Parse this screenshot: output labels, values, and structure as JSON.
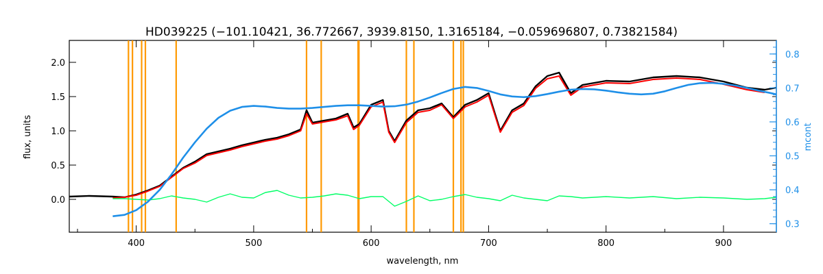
{
  "chart_data": {
    "type": "line",
    "title": "HD039225    (−101.10421, 36.772667, 3939.8150, 1.3165184, −0.059696807, 0.73821584)",
    "xlabel": "wavelength, nm",
    "ylabel": "flux, units",
    "y2label": "mcont",
    "xlim": [
      343,
      945
    ],
    "ylim": [
      -0.48,
      2.32
    ],
    "y2lim": [
      0.275,
      0.84
    ],
    "x_ticks": [
      400,
      500,
      600,
      700,
      800,
      900
    ],
    "y_ticks": [
      0.0,
      0.5,
      1.0,
      1.5,
      2.0
    ],
    "y_tick_labels": [
      "0.0",
      "0.5",
      "1.0",
      "1.5",
      "2.0"
    ],
    "y2_ticks": [
      0.3,
      0.4,
      0.5,
      0.6,
      0.7,
      0.8
    ],
    "y2_tick_labels": [
      "0.3",
      "0.4",
      "0.5",
      "0.6",
      "0.7",
      "0.8"
    ],
    "colors": {
      "observed": "#000000",
      "model": "#ff0000",
      "residual": "#00ff66",
      "continuum": "#1e8fe8",
      "lines": "#ff9900",
      "axis": "#000000",
      "right_axis": "#1e8fe8"
    },
    "line_markers": [
      393.4,
      396.8,
      404.6,
      407.8,
      434.0,
      545.0,
      557.5,
      588.9,
      589.6,
      630.0,
      636.4,
      670.0,
      676.5,
      678.5
    ],
    "series": [
      {
        "role": "observed",
        "points": [
          [
            343,
            0.04
          ],
          [
            360,
            0.05
          ],
          [
            380,
            0.04
          ],
          [
            390,
            0.03
          ],
          [
            400,
            0.07
          ],
          [
            410,
            0.13
          ],
          [
            420,
            0.2
          ],
          [
            430,
            0.33
          ],
          [
            440,
            0.46
          ],
          [
            450,
            0.55
          ],
          [
            460,
            0.66
          ],
          [
            470,
            0.7
          ],
          [
            480,
            0.74
          ],
          [
            490,
            0.79
          ],
          [
            500,
            0.83
          ],
          [
            510,
            0.87
          ],
          [
            520,
            0.9
          ],
          [
            530,
            0.95
          ],
          [
            540,
            1.02
          ],
          [
            545,
            1.3
          ],
          [
            550,
            1.12
          ],
          [
            560,
            1.15
          ],
          [
            570,
            1.18
          ],
          [
            580,
            1.25
          ],
          [
            585,
            1.05
          ],
          [
            590,
            1.1
          ],
          [
            600,
            1.38
          ],
          [
            610,
            1.45
          ],
          [
            615,
            1.0
          ],
          [
            620,
            0.85
          ],
          [
            630,
            1.15
          ],
          [
            640,
            1.3
          ],
          [
            650,
            1.33
          ],
          [
            660,
            1.4
          ],
          [
            670,
            1.2
          ],
          [
            680,
            1.38
          ],
          [
            690,
            1.45
          ],
          [
            700,
            1.55
          ],
          [
            710,
            1.0
          ],
          [
            720,
            1.3
          ],
          [
            730,
            1.4
          ],
          [
            740,
            1.65
          ],
          [
            750,
            1.8
          ],
          [
            760,
            1.85
          ],
          [
            770,
            1.55
          ],
          [
            780,
            1.67
          ],
          [
            800,
            1.73
          ],
          [
            820,
            1.72
          ],
          [
            840,
            1.78
          ],
          [
            860,
            1.8
          ],
          [
            880,
            1.78
          ],
          [
            900,
            1.72
          ],
          [
            920,
            1.63
          ],
          [
            935,
            1.6
          ],
          [
            945,
            1.63
          ]
        ]
      },
      {
        "role": "model",
        "points": [
          [
            380,
            0.02
          ],
          [
            390,
            0.03
          ],
          [
            400,
            0.06
          ],
          [
            410,
            0.12
          ],
          [
            420,
            0.19
          ],
          [
            430,
            0.32
          ],
          [
            440,
            0.45
          ],
          [
            450,
            0.53
          ],
          [
            460,
            0.64
          ],
          [
            470,
            0.68
          ],
          [
            480,
            0.72
          ],
          [
            490,
            0.77
          ],
          [
            500,
            0.81
          ],
          [
            510,
            0.85
          ],
          [
            520,
            0.88
          ],
          [
            530,
            0.93
          ],
          [
            540,
            1.0
          ],
          [
            545,
            1.25
          ],
          [
            550,
            1.1
          ],
          [
            560,
            1.13
          ],
          [
            570,
            1.16
          ],
          [
            580,
            1.22
          ],
          [
            585,
            1.02
          ],
          [
            590,
            1.08
          ],
          [
            600,
            1.35
          ],
          [
            610,
            1.42
          ],
          [
            615,
            0.98
          ],
          [
            620,
            0.83
          ],
          [
            630,
            1.12
          ],
          [
            640,
            1.27
          ],
          [
            650,
            1.3
          ],
          [
            660,
            1.38
          ],
          [
            670,
            1.18
          ],
          [
            680,
            1.35
          ],
          [
            690,
            1.42
          ],
          [
            700,
            1.52
          ],
          [
            710,
            0.98
          ],
          [
            720,
            1.27
          ],
          [
            730,
            1.37
          ],
          [
            740,
            1.62
          ],
          [
            750,
            1.76
          ],
          [
            760,
            1.8
          ],
          [
            770,
            1.52
          ],
          [
            780,
            1.64
          ],
          [
            800,
            1.7
          ],
          [
            820,
            1.69
          ],
          [
            840,
            1.75
          ],
          [
            860,
            1.77
          ],
          [
            880,
            1.75
          ],
          [
            900,
            1.68
          ],
          [
            920,
            1.6
          ],
          [
            935,
            1.56
          ]
        ]
      },
      {
        "role": "residual",
        "points": [
          [
            380,
            0.01
          ],
          [
            390,
            0.01
          ],
          [
            400,
            0.0
          ],
          [
            410,
            -0.01
          ],
          [
            420,
            0.01
          ],
          [
            430,
            0.05
          ],
          [
            440,
            0.02
          ],
          [
            450,
            0.0
          ],
          [
            460,
            -0.04
          ],
          [
            470,
            0.03
          ],
          [
            480,
            0.08
          ],
          [
            490,
            0.03
          ],
          [
            500,
            0.02
          ],
          [
            510,
            0.1
          ],
          [
            520,
            0.13
          ],
          [
            530,
            0.06
          ],
          [
            540,
            0.02
          ],
          [
            550,
            0.03
          ],
          [
            560,
            0.05
          ],
          [
            570,
            0.08
          ],
          [
            580,
            0.06
          ],
          [
            590,
            0.01
          ],
          [
            600,
            0.04
          ],
          [
            610,
            0.04
          ],
          [
            620,
            -0.1
          ],
          [
            630,
            -0.03
          ],
          [
            640,
            0.05
          ],
          [
            650,
            -0.02
          ],
          [
            660,
            0.0
          ],
          [
            670,
            0.04
          ],
          [
            680,
            0.07
          ],
          [
            690,
            0.03
          ],
          [
            700,
            0.01
          ],
          [
            710,
            -0.02
          ],
          [
            720,
            0.06
          ],
          [
            730,
            0.02
          ],
          [
            740,
            0.0
          ],
          [
            750,
            -0.02
          ],
          [
            760,
            0.05
          ],
          [
            770,
            0.04
          ],
          [
            780,
            0.02
          ],
          [
            800,
            0.04
          ],
          [
            820,
            0.02
          ],
          [
            840,
            0.04
          ],
          [
            860,
            0.01
          ],
          [
            880,
            0.03
          ],
          [
            900,
            0.02
          ],
          [
            920,
            0.0
          ],
          [
            935,
            0.01
          ],
          [
            945,
            0.03
          ]
        ]
      },
      {
        "role": "continuum",
        "axis": "right",
        "points": [
          [
            380,
            0.322
          ],
          [
            390,
            0.326
          ],
          [
            400,
            0.34
          ],
          [
            410,
            0.365
          ],
          [
            420,
            0.4
          ],
          [
            430,
            0.445
          ],
          [
            440,
            0.495
          ],
          [
            450,
            0.54
          ],
          [
            460,
            0.58
          ],
          [
            470,
            0.612
          ],
          [
            480,
            0.633
          ],
          [
            490,
            0.644
          ],
          [
            500,
            0.647
          ],
          [
            510,
            0.645
          ],
          [
            520,
            0.641
          ],
          [
            530,
            0.639
          ],
          [
            540,
            0.639
          ],
          [
            550,
            0.641
          ],
          [
            560,
            0.644
          ],
          [
            570,
            0.647
          ],
          [
            580,
            0.649
          ],
          [
            590,
            0.649
          ],
          [
            600,
            0.647
          ],
          [
            610,
            0.645
          ],
          [
            620,
            0.646
          ],
          [
            630,
            0.651
          ],
          [
            640,
            0.66
          ],
          [
            650,
            0.672
          ],
          [
            660,
            0.685
          ],
          [
            670,
            0.697
          ],
          [
            680,
            0.703
          ],
          [
            690,
            0.7
          ],
          [
            700,
            0.691
          ],
          [
            710,
            0.681
          ],
          [
            720,
            0.675
          ],
          [
            730,
            0.673
          ],
          [
            740,
            0.676
          ],
          [
            750,
            0.682
          ],
          [
            760,
            0.689
          ],
          [
            770,
            0.695
          ],
          [
            780,
            0.697
          ],
          [
            790,
            0.696
          ],
          [
            800,
            0.692
          ],
          [
            810,
            0.687
          ],
          [
            820,
            0.683
          ],
          [
            830,
            0.681
          ],
          [
            840,
            0.683
          ],
          [
            850,
            0.69
          ],
          [
            860,
            0.7
          ],
          [
            870,
            0.709
          ],
          [
            880,
            0.714
          ],
          [
            890,
            0.715
          ],
          [
            900,
            0.712
          ],
          [
            910,
            0.707
          ],
          [
            920,
            0.7
          ],
          [
            930,
            0.692
          ],
          [
            940,
            0.685
          ],
          [
            945,
            0.681
          ]
        ]
      }
    ]
  }
}
